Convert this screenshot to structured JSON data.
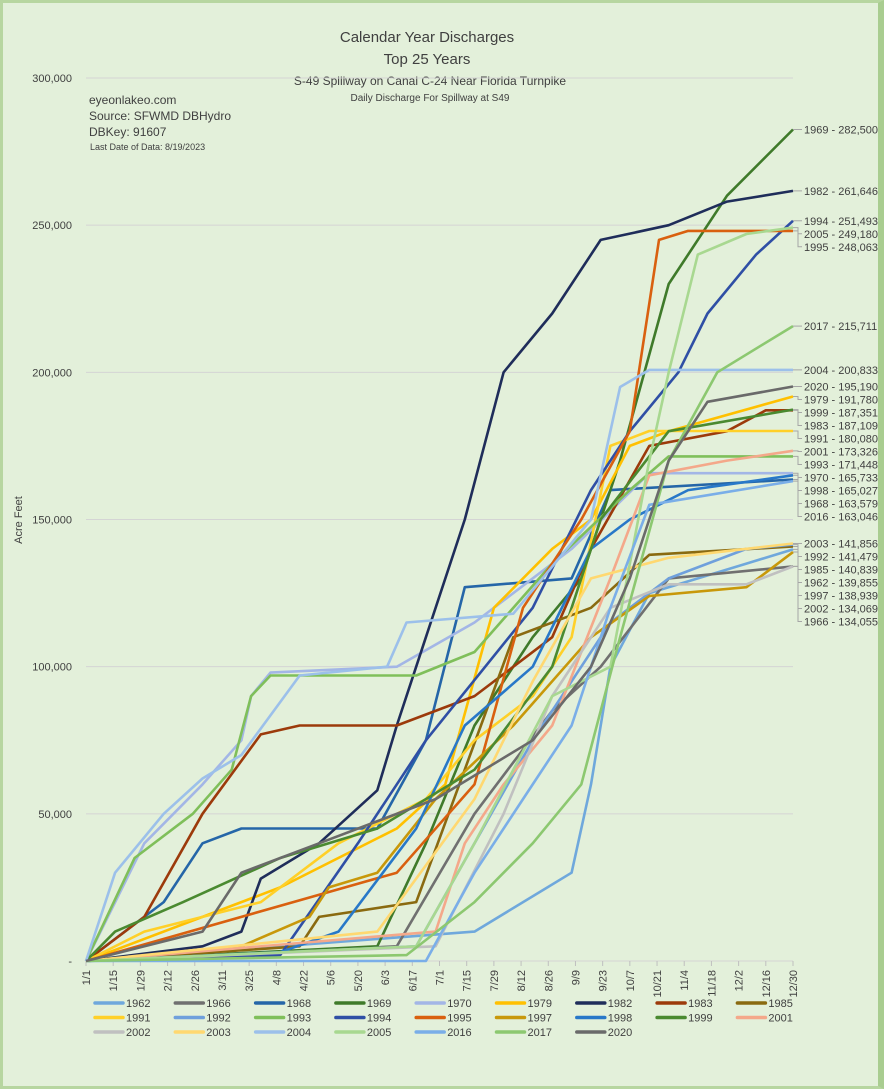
{
  "chart_data": {
    "type": "line",
    "title": "Calendar Year Discharges",
    "subtitle": "Top 25 Years",
    "subtitle2": "S-49 Spillway on Canal C-24 Near Florida Turnpike",
    "subtitle3": "Daily Discharge For Spillway at S49",
    "notes": [
      "eyeonlakeo.com",
      "Source: SFWMD DBHydro",
      "DBKey: 91607"
    ],
    "last_date": "Last Date of Data: 8/19/2023",
    "xlabel": "",
    "ylabel": "Acre Feet",
    "ylim": [
      0,
      300000
    ],
    "xlim_day": [
      0,
      364
    ],
    "grid": true,
    "legend_position": "bottom",
    "y_ticks": [
      {
        "value": 0,
        "label": "-"
      },
      {
        "value": 50000,
        "label": "50,000"
      },
      {
        "value": 100000,
        "label": "100,000"
      },
      {
        "value": 150000,
        "label": "150,000"
      },
      {
        "value": 200000,
        "label": "200,000"
      },
      {
        "value": 250000,
        "label": "250,000"
      },
      {
        "value": 300000,
        "label": "300,000"
      }
    ],
    "x_tick_labels": [
      "1/1",
      "1/15",
      "1/29",
      "2/12",
      "2/26",
      "3/11",
      "3/25",
      "4/8",
      "4/22",
      "5/6",
      "5/20",
      "6/3",
      "6/17",
      "7/1",
      "7/15",
      "7/29",
      "8/12",
      "8/26",
      "9/9",
      "9/23",
      "10/7",
      "10/21",
      "11/4",
      "11/18",
      "12/2",
      "12/16",
      "12/30"
    ],
    "x_tick_step_days": 14,
    "series": [
      {
        "name": "1962",
        "color": "#6fa8dc",
        "end_label": "1962 - 139,855",
        "points": [
          [
            0,
            0
          ],
          [
            200,
            10000
          ],
          [
            250,
            30000
          ],
          [
            260,
            60000
          ],
          [
            270,
            100000
          ],
          [
            290,
            125000
          ],
          [
            340,
            135000
          ],
          [
            364,
            139855
          ]
        ]
      },
      {
        "name": "1966",
        "color": "#707070",
        "end_label": "1966 - 134,055",
        "points": [
          [
            0,
            0
          ],
          [
            160,
            5000
          ],
          [
            200,
            50000
          ],
          [
            240,
            85000
          ],
          [
            265,
            100000
          ],
          [
            300,
            130000
          ],
          [
            364,
            134055
          ]
        ]
      },
      {
        "name": "1968",
        "color": "#2566a8",
        "end_label": "1968 - 163,579",
        "points": [
          [
            0,
            0
          ],
          [
            40,
            20000
          ],
          [
            60,
            40000
          ],
          [
            80,
            45000
          ],
          [
            150,
            45000
          ],
          [
            175,
            75000
          ],
          [
            195,
            127000
          ],
          [
            250,
            130000
          ],
          [
            270,
            160000
          ],
          [
            364,
            163579
          ]
        ]
      },
      {
        "name": "1969",
        "color": "#3f7a2a",
        "end_label": "1969 - 282,500",
        "points": [
          [
            0,
            0
          ],
          [
            150,
            5000
          ],
          [
            175,
            40000
          ],
          [
            200,
            80000
          ],
          [
            230,
            110000
          ],
          [
            255,
            130000
          ],
          [
            275,
            170000
          ],
          [
            300,
            230000
          ],
          [
            330,
            260000
          ],
          [
            364,
            282500
          ]
        ]
      },
      {
        "name": "1970",
        "color": "#a3b6e6",
        "end_label": "1970 - 165,733",
        "points": [
          [
            0,
            0
          ],
          [
            30,
            40000
          ],
          [
            60,
            60000
          ],
          [
            80,
            75000
          ],
          [
            85,
            90000
          ],
          [
            95,
            98000
          ],
          [
            160,
            100000
          ],
          [
            200,
            115000
          ],
          [
            250,
            140000
          ],
          [
            290,
            165733
          ],
          [
            364,
            165733
          ]
        ]
      },
      {
        "name": "1979",
        "color": "#ffc000",
        "end_label": "1979 - 191,780",
        "points": [
          [
            0,
            0
          ],
          [
            20,
            5000
          ],
          [
            100,
            25000
          ],
          [
            160,
            45000
          ],
          [
            185,
            60000
          ],
          [
            210,
            120000
          ],
          [
            240,
            140000
          ],
          [
            260,
            150000
          ],
          [
            280,
            175000
          ],
          [
            300,
            180000
          ],
          [
            364,
            191780
          ]
        ]
      },
      {
        "name": "1982",
        "color": "#1f2d5a",
        "end_label": "1982 - 261,646",
        "points": [
          [
            0,
            0
          ],
          [
            60,
            5000
          ],
          [
            80,
            10000
          ],
          [
            90,
            28000
          ],
          [
            120,
            40000
          ],
          [
            150,
            58000
          ],
          [
            160,
            80000
          ],
          [
            175,
            110000
          ],
          [
            195,
            150000
          ],
          [
            215,
            200000
          ],
          [
            240,
            220000
          ],
          [
            265,
            245000
          ],
          [
            300,
            250000
          ],
          [
            330,
            258000
          ],
          [
            364,
            261646
          ]
        ]
      },
      {
        "name": "1983",
        "color": "#9c3a0b",
        "end_label": "1983 - 187,109",
        "points": [
          [
            0,
            0
          ],
          [
            30,
            15000
          ],
          [
            60,
            50000
          ],
          [
            90,
            77000
          ],
          [
            110,
            80000
          ],
          [
            160,
            80000
          ],
          [
            200,
            90000
          ],
          [
            240,
            110000
          ],
          [
            260,
            140000
          ],
          [
            290,
            175000
          ],
          [
            330,
            180000
          ],
          [
            350,
            187109
          ],
          [
            364,
            187109
          ]
        ]
      },
      {
        "name": "1985",
        "color": "#8a6a10",
        "end_label": "1985 - 140,839",
        "points": [
          [
            0,
            0
          ],
          [
            110,
            5000
          ],
          [
            120,
            15000
          ],
          [
            170,
            20000
          ],
          [
            220,
            110000
          ],
          [
            260,
            120000
          ],
          [
            290,
            138000
          ],
          [
            364,
            140839
          ]
        ]
      },
      {
        "name": "1991",
        "color": "#ffd028",
        "end_label": "1991 - 180,080",
        "points": [
          [
            0,
            0
          ],
          [
            30,
            10000
          ],
          [
            90,
            20000
          ],
          [
            130,
            40000
          ],
          [
            175,
            55000
          ],
          [
            200,
            75000
          ],
          [
            230,
            90000
          ],
          [
            250,
            110000
          ],
          [
            270,
            175000
          ],
          [
            290,
            180080
          ],
          [
            364,
            180080
          ]
        ]
      },
      {
        "name": "1992",
        "color": "#6fa0dc",
        "end_label": "1992 - 141,479",
        "points": [
          [
            0,
            0
          ],
          [
            170,
            5000
          ],
          [
            200,
            40000
          ],
          [
            230,
            75000
          ],
          [
            270,
            115000
          ],
          [
            300,
            130000
          ],
          [
            340,
            140000
          ],
          [
            364,
            141479
          ]
        ]
      },
      {
        "name": "1993",
        "color": "#7fbf5a",
        "end_label": "1993 - 171,448",
        "points": [
          [
            0,
            0
          ],
          [
            25,
            35000
          ],
          [
            55,
            50000
          ],
          [
            75,
            65000
          ],
          [
            85,
            90000
          ],
          [
            95,
            97000
          ],
          [
            170,
            97000
          ],
          [
            200,
            105000
          ],
          [
            240,
            135000
          ],
          [
            280,
            160000
          ],
          [
            300,
            171448
          ],
          [
            364,
            171448
          ]
        ]
      },
      {
        "name": "1994",
        "color": "#2f4fa5",
        "end_label": "1994 - 251,493",
        "points": [
          [
            0,
            0
          ],
          [
            100,
            2000
          ],
          [
            140,
            40000
          ],
          [
            175,
            75000
          ],
          [
            230,
            120000
          ],
          [
            260,
            160000
          ],
          [
            280,
            180000
          ],
          [
            305,
            200000
          ],
          [
            320,
            220000
          ],
          [
            345,
            240000
          ],
          [
            364,
            251493
          ]
        ]
      },
      {
        "name": "1995",
        "color": "#d9600f",
        "end_label": "1995 - 248,063",
        "points": [
          [
            0,
            0
          ],
          [
            160,
            30000
          ],
          [
            200,
            60000
          ],
          [
            225,
            120000
          ],
          [
            255,
            150000
          ],
          [
            280,
            180000
          ],
          [
            295,
            245000
          ],
          [
            310,
            248063
          ],
          [
            364,
            248063
          ]
        ]
      },
      {
        "name": "1997",
        "color": "#c8980a",
        "end_label": "1997 - 138,939",
        "points": [
          [
            0,
            0
          ],
          [
            80,
            5000
          ],
          [
            115,
            15000
          ],
          [
            125,
            25000
          ],
          [
            150,
            30000
          ],
          [
            180,
            55000
          ],
          [
            220,
            80000
          ],
          [
            260,
            110000
          ],
          [
            290,
            124000
          ],
          [
            340,
            127000
          ],
          [
            364,
            138939
          ]
        ]
      },
      {
        "name": "1998",
        "color": "#2878c8",
        "end_label": "1998 - 165,027",
        "points": [
          [
            0,
            0
          ],
          [
            100,
            3000
          ],
          [
            130,
            10000
          ],
          [
            170,
            45000
          ],
          [
            195,
            80000
          ],
          [
            230,
            100000
          ],
          [
            260,
            140000
          ],
          [
            280,
            150000
          ],
          [
            310,
            160000
          ],
          [
            364,
            165027
          ]
        ]
      },
      {
        "name": "1999",
        "color": "#4a8a30",
        "end_label": "1999 - 187,351",
        "points": [
          [
            0,
            0
          ],
          [
            15,
            10000
          ],
          [
            50,
            20000
          ],
          [
            100,
            35000
          ],
          [
            150,
            45000
          ],
          [
            200,
            65000
          ],
          [
            240,
            100000
          ],
          [
            265,
            150000
          ],
          [
            300,
            180000
          ],
          [
            364,
            187351
          ]
        ]
      },
      {
        "name": "2001",
        "color": "#f4a88a",
        "end_label": "2001 - 173,326",
        "points": [
          [
            0,
            0
          ],
          [
            180,
            10000
          ],
          [
            195,
            40000
          ],
          [
            215,
            60000
          ],
          [
            240,
            80000
          ],
          [
            270,
            130000
          ],
          [
            290,
            165000
          ],
          [
            330,
            170000
          ],
          [
            364,
            173326
          ]
        ]
      },
      {
        "name": "2002",
        "color": "#c0c0c0",
        "end_label": "2002 - 134,069",
        "points": [
          [
            0,
            0
          ],
          [
            180,
            5000
          ],
          [
            215,
            50000
          ],
          [
            240,
            90000
          ],
          [
            270,
            120000
          ],
          [
            300,
            128000
          ],
          [
            340,
            128000
          ],
          [
            364,
            134069
          ]
        ]
      },
      {
        "name": "2003",
        "color": "#ffd870",
        "end_label": "2003 - 141,856",
        "points": [
          [
            0,
            0
          ],
          [
            150,
            10000
          ],
          [
            200,
            55000
          ],
          [
            230,
            95000
          ],
          [
            260,
            130000
          ],
          [
            300,
            137000
          ],
          [
            364,
            141856
          ]
        ]
      },
      {
        "name": "2004",
        "color": "#9cc0ea",
        "end_label": "2004 - 200,833",
        "points": [
          [
            0,
            0
          ],
          [
            15,
            30000
          ],
          [
            40,
            50000
          ],
          [
            60,
            62000
          ],
          [
            80,
            70000
          ],
          [
            110,
            97000
          ],
          [
            155,
            100000
          ],
          [
            165,
            115000
          ],
          [
            220,
            118000
          ],
          [
            260,
            150000
          ],
          [
            275,
            195000
          ],
          [
            290,
            200833
          ],
          [
            364,
            200833
          ]
        ]
      },
      {
        "name": "2005",
        "color": "#a8d890",
        "end_label": "2005 - 249,180",
        "points": [
          [
            0,
            0
          ],
          [
            170,
            5000
          ],
          [
            200,
            40000
          ],
          [
            240,
            90000
          ],
          [
            270,
            100000
          ],
          [
            290,
            170000
          ],
          [
            300,
            200000
          ],
          [
            315,
            240000
          ],
          [
            340,
            247000
          ],
          [
            364,
            249180
          ]
        ]
      },
      {
        "name": "2016",
        "color": "#7aaee8",
        "end_label": "2016 - 163,046",
        "points": [
          [
            0,
            0
          ],
          [
            175,
            0
          ],
          [
            200,
            30000
          ],
          [
            230,
            60000
          ],
          [
            250,
            80000
          ],
          [
            270,
            120000
          ],
          [
            290,
            155000
          ],
          [
            364,
            163046
          ]
        ]
      },
      {
        "name": "2017",
        "color": "#8cc870",
        "end_label": "2017 - 215,711",
        "points": [
          [
            0,
            0
          ],
          [
            165,
            2000
          ],
          [
            200,
            20000
          ],
          [
            230,
            40000
          ],
          [
            255,
            60000
          ],
          [
            275,
            110000
          ],
          [
            300,
            170000
          ],
          [
            325,
            200000
          ],
          [
            364,
            215711
          ]
        ]
      },
      {
        "name": "2020",
        "color": "#6a6a6a",
        "end_label": "2020 - 195,190",
        "points": [
          [
            0,
            0
          ],
          [
            60,
            10000
          ],
          [
            80,
            30000
          ],
          [
            120,
            40000
          ],
          [
            180,
            55000
          ],
          [
            230,
            75000
          ],
          [
            260,
            100000
          ],
          [
            280,
            130000
          ],
          [
            300,
            170000
          ],
          [
            320,
            190000
          ],
          [
            364,
            195190
          ]
        ]
      }
    ]
  }
}
